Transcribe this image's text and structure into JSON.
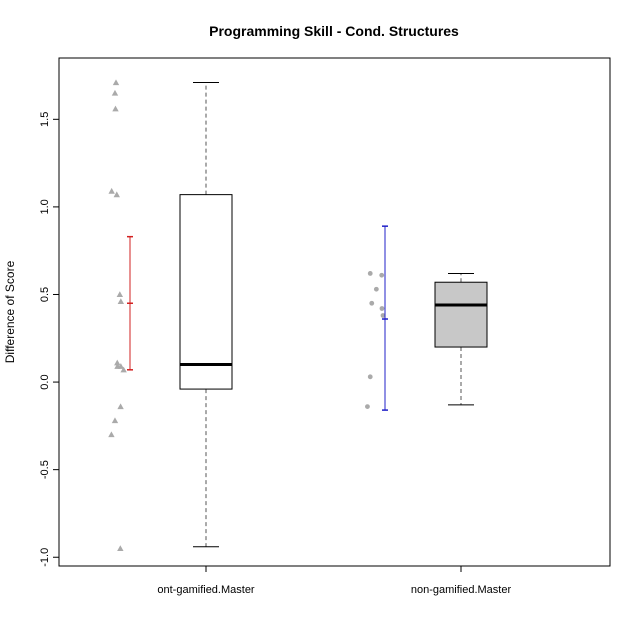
{
  "chart_data": {
    "type": "box",
    "title": "Programming Skill - Cond. Structures",
    "xlabel": "",
    "ylabel": "Difference of Score",
    "ylim": [
      -1.05,
      1.85
    ],
    "yticks": [
      -1.0,
      -0.5,
      0.0,
      0.5,
      1.0,
      1.5
    ],
    "ytick_labels": [
      "-1.0",
      "-0.5",
      "0.0",
      "0.5",
      "1.0",
      "1.5"
    ],
    "categories": [
      "ont-gamified.Master",
      "non-gamified.Master"
    ],
    "box_colors": [
      "#ffffff",
      "#c8c8c8"
    ],
    "point_color": "#aaaaaa",
    "boxes": [
      {
        "min": -0.94,
        "q1": -0.04,
        "median": 0.1,
        "q3": 1.07,
        "max": 1.71
      },
      {
        "min": -0.13,
        "q1": 0.2,
        "median": 0.44,
        "q3": 0.57,
        "max": 0.62
      }
    ],
    "error_bars": [
      {
        "mean": 0.45,
        "low": 0.07,
        "high": 0.83,
        "color": "#d22020"
      },
      {
        "mean": 0.36,
        "low": -0.16,
        "high": 0.89,
        "color": "#2020c8"
      }
    ],
    "points": [
      {
        "group": 0,
        "shape": "triangle",
        "values": [
          1.71,
          1.65,
          1.56,
          1.09,
          1.07,
          0.5,
          0.46,
          0.11,
          0.09,
          0.09,
          0.07,
          -0.14,
          -0.22,
          -0.3,
          -0.95
        ],
        "x_offsets": [
          -0.06,
          -0.064,
          -0.062,
          -0.077,
          -0.057,
          -0.045,
          -0.041,
          -0.055,
          -0.054,
          -0.041,
          -0.03,
          -0.042,
          -0.064,
          -0.078,
          -0.043
        ]
      },
      {
        "group": 1,
        "shape": "circle",
        "values": [
          0.62,
          0.61,
          0.53,
          0.45,
          0.42,
          0.38,
          0.03,
          -0.14
        ],
        "x_offsets": [
          -0.063,
          -0.018,
          -0.039,
          -0.057,
          -0.017,
          -0.013,
          -0.063,
          -0.074
        ]
      }
    ]
  }
}
